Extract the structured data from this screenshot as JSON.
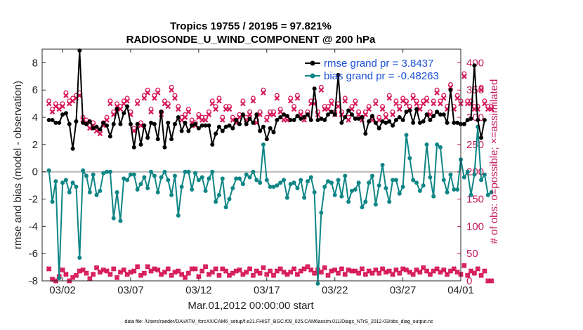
{
  "chart_data": {
    "type": "line",
    "title": "Tropics 19755 / 20195 = 97.821%",
    "subtitle": "RADIOSONDE_U_WIND_COMPONENT @ 200 hPa",
    "xlabel": "Mar.01,2012 00:00:00 start",
    "ylabel": "rmse and bias (model - observation)",
    "ylabel_right": "# of obs: o=possible; ×=assimilated",
    "footer": "data file: /Users/raeder/DAI/ATM_forcXX/CAM6_setup/f.e21.FHIST_BGC.f09_025.CAM6assim.011/Diags_NTrS_2012-03/obs_diag_output.nc",
    "xlim": [
      0.5,
      31.25
    ],
    "ylim": [
      -8,
      9
    ],
    "ylim_right": [
      0,
      425
    ],
    "x_ticks": [
      {
        "v": 2,
        "label": "03/02"
      },
      {
        "v": 7,
        "label": "03/07"
      },
      {
        "v": 12,
        "label": "03/12"
      },
      {
        "v": 17,
        "label": "03/17"
      },
      {
        "v": 22,
        "label": "03/22"
      },
      {
        "v": 27,
        "label": "03/27"
      },
      {
        "v": 32,
        "label": "04/01"
      }
    ],
    "y_ticks": [
      -8,
      -6,
      -4,
      -2,
      0,
      2,
      4,
      6,
      8
    ],
    "y_ticks_right": [
      0,
      50,
      100,
      150,
      200,
      250,
      300,
      350,
      400
    ],
    "x_start": 1.0,
    "x_step": 0.25,
    "colors": {
      "rmse": "#000000",
      "bias": "#0f8585",
      "obs": "#d6185a",
      "zero_line": "#b8b8b8",
      "legend_text": "#1a4fd6"
    },
    "legend": [
      {
        "name": "rmse",
        "label": "rmse grand pr = 3.8437",
        "color": "#000000"
      },
      {
        "name": "bias",
        "label": "bias grand pr = -0.48263",
        "color": "#0f8585"
      }
    ],
    "series": [
      {
        "name": "rmse",
        "axis": "left",
        "values": [
          3.8,
          3.8,
          3.6,
          3.6,
          4.2,
          4.3,
          3.5,
          1.7,
          3.7,
          8.9,
          3.6,
          3.5,
          3.7,
          3.2,
          3.3,
          3.1,
          3.6,
          3.4,
          2.6,
          3.5,
          4.6,
          3.5,
          4.3,
          4.8,
          3.5,
          1.8,
          3.5,
          2.0,
          3.4,
          2.5,
          3.6,
          3.5,
          2.4,
          4.4,
          1.8,
          3.6,
          2.4,
          3.5,
          4.0,
          3.0,
          3.6,
          3.0,
          3.4,
          3.5,
          3.2,
          3.4,
          3.4,
          3.4,
          2.0,
          2.8,
          3.3,
          3.0,
          3.3,
          3.4,
          3.2,
          3.8,
          3.5,
          4.2,
          3.5,
          3.9,
          3.6,
          4.2,
          3.0,
          3.3,
          2.4,
          3.2,
          2.9,
          3.8,
          4.0,
          4.2,
          4.1,
          3.8,
          3.8,
          4.1,
          3.9,
          4.0,
          4.2,
          3.8,
          6.1,
          3.8,
          3.9,
          3.8,
          4.2,
          4.4,
          4.2,
          7.1,
          3.6,
          4.0,
          4.5,
          4.2,
          3.9,
          3.9,
          4.0,
          2.8,
          3.7,
          4.1,
          3.6,
          3.2,
          3.7,
          3.6,
          3.7,
          3.4,
          3.8,
          4.0,
          3.8,
          4.4,
          4.5,
          3.6,
          4.6,
          3.6,
          3.7,
          4.2,
          3.8,
          4.1,
          4.4,
          4.2,
          4.2,
          3.6,
          6.0,
          3.6,
          3.6,
          3.5,
          3.5,
          3.8,
          3.9,
          7.8,
          3.8,
          2.5,
          3.8
        ]
      },
      {
        "name": "bias",
        "axis": "left",
        "values": [
          0.1,
          -2.2,
          -0.7,
          -7.8,
          -0.8,
          -0.6,
          -1.5,
          -0.8,
          -1.1,
          -6.3,
          0.1,
          -0.3,
          -1.5,
          -0.2,
          -1.7,
          -1.4,
          -0.1,
          0.0,
          0.0,
          -3.4,
          -1.5,
          -3.6,
          -0.5,
          -0.6,
          -0.2,
          -0.2,
          -1.3,
          -0.9,
          -0.4,
          -1.2,
          0.0,
          -0.3,
          -1.5,
          -0.4,
          0.0,
          -0.6,
          -1.7,
          -0.3,
          -3.2,
          -1.1,
          0.0,
          0.0,
          -1.3,
          -0.1,
          -0.6,
          -0.4,
          -1.4,
          -0.5,
          0.0,
          -2.2,
          -1.7,
          -0.5,
          -2.6,
          -2.0,
          -1.2,
          -0.5,
          -0.5,
          -0.9,
          -0.2,
          -0.4,
          0.0,
          -0.6,
          -0.8,
          2.0,
          -0.6,
          -1.1,
          -1.1,
          -1.0,
          -0.8,
          -0.6,
          -1.9,
          -0.9,
          -0.8,
          -1.2,
          -0.6,
          -1.9,
          -0.7,
          -0.4,
          -1.5,
          -8.2,
          -3.0,
          -1.1,
          -0.7,
          -0.8,
          -1.7,
          -0.6,
          -1.8,
          -0.3,
          -2.2,
          -1.4,
          -1.3,
          -0.8,
          -2.6,
          -2.2,
          -0.8,
          -0.3,
          -2.4,
          -1.0,
          0.5,
          -1.2,
          -2.2,
          -0.6,
          -0.6,
          -1.6,
          -1.1,
          2.7,
          1.0,
          -0.6,
          -0.8,
          -1.4,
          -1.0,
          2.0,
          -0.4,
          -1.8,
          2.0,
          1.8,
          -0.6,
          -1.5,
          -0.2,
          -1.3,
          -1.3,
          0.9,
          -0.4,
          0.0,
          -1.7,
          -0.2,
          3.3,
          -0.6,
          -0.2,
          -1.7,
          -1.5
        ]
      },
      {
        "name": "possible",
        "axis": "right",
        "marker": "circle",
        "values": [
          330,
          315,
          325,
          320,
          325,
          345,
          330,
          335,
          340,
          345,
          300,
          295,
          285,
          290,
          280,
          275,
          290,
          300,
          330,
          310,
          325,
          320,
          330,
          335,
          310,
          280,
          330,
          290,
          340,
          350,
          315,
          340,
          350,
          310,
          330,
          325,
          355,
          340,
          320,
          300,
          305,
          315,
          295,
          290,
          305,
          300,
          300,
          310,
          330,
          320,
          335,
          300,
          320,
          320,
          300,
          295,
          305,
          330,
          300,
          310,
          335,
          295,
          310,
          350,
          300,
          310,
          310,
          340,
          315,
          300,
          300,
          335,
          320,
          340,
          310,
          300,
          310,
          330,
          330,
          310,
          355,
          320,
          320,
          330,
          310,
          325,
          310,
          335,
          300,
          320,
          330,
          310,
          300,
          310,
          320,
          300,
          330,
          300,
          320,
          305,
          340,
          310,
          330,
          320,
          335,
          330,
          320,
          340,
          330,
          320,
          330,
          335,
          310,
          330,
          350,
          330,
          340,
          320,
          360,
          320,
          340,
          330,
          380,
          330,
          330,
          320,
          320,
          355,
          330,
          320,
          320
        ]
      },
      {
        "name": "assimilated",
        "axis": "right",
        "marker": "x",
        "values": [
          325,
          310,
          320,
          315,
          320,
          340,
          325,
          330,
          335,
          340,
          295,
          290,
          280,
          285,
          275,
          270,
          285,
          295,
          325,
          305,
          320,
          315,
          325,
          330,
          305,
          275,
          325,
          285,
          335,
          345,
          310,
          335,
          345,
          305,
          325,
          320,
          350,
          335,
          315,
          295,
          300,
          310,
          290,
          285,
          300,
          295,
          295,
          305,
          325,
          315,
          330,
          295,
          315,
          315,
          295,
          290,
          300,
          325,
          295,
          305,
          330,
          290,
          305,
          345,
          295,
          305,
          305,
          335,
          310,
          295,
          295,
          330,
          315,
          335,
          305,
          295,
          305,
          325,
          325,
          305,
          350,
          315,
          315,
          325,
          305,
          320,
          305,
          330,
          295,
          315,
          325,
          305,
          295,
          305,
          315,
          295,
          325,
          295,
          315,
          300,
          335,
          305,
          325,
          315,
          330,
          325,
          315,
          335,
          325,
          315,
          325,
          330,
          305,
          325,
          345,
          325,
          335,
          315,
          355,
          315,
          335,
          325,
          375,
          325,
          325,
          315,
          315,
          350,
          325,
          315,
          315
        ]
      },
      {
        "name": "possible_low",
        "axis": "right",
        "marker": "circle",
        "values": [
          22,
          3,
          0,
          8,
          20,
          12,
          0,
          6,
          10,
          18,
          20,
          14,
          4,
          12,
          24,
          16,
          20,
          18,
          12,
          22,
          6,
          16,
          20,
          12,
          16,
          18,
          26,
          10,
          14,
          26,
          18,
          22,
          20,
          12,
          16,
          22,
          10,
          16,
          18,
          12,
          6,
          14,
          22,
          22,
          8,
          18,
          26,
          12,
          16,
          22,
          10,
          22,
          18,
          10,
          14,
          18,
          20,
          12,
          16,
          22,
          10,
          18,
          14,
          24,
          12,
          18,
          10,
          18,
          22,
          16,
          12,
          16,
          22,
          12,
          18,
          22,
          26,
          20,
          14,
          20,
          16,
          24,
          10,
          18,
          20,
          14,
          22,
          12,
          20,
          18,
          18,
          14,
          22,
          12,
          18,
          14,
          20,
          14,
          22,
          16,
          18,
          12,
          20,
          14,
          22,
          20,
          16,
          12,
          20,
          16,
          24,
          18,
          12,
          18,
          22,
          16,
          20,
          12,
          18,
          22,
          16,
          12,
          28,
          10,
          18,
          14,
          22,
          10,
          18,
          0,
          0
        ]
      },
      {
        "name": "assimilated_low",
        "axis": "right",
        "marker": "x",
        "values": [
          22,
          3,
          0,
          8,
          20,
          12,
          0,
          6,
          10,
          18,
          20,
          14,
          4,
          12,
          24,
          16,
          20,
          18,
          12,
          22,
          6,
          16,
          20,
          12,
          16,
          18,
          26,
          10,
          14,
          26,
          18,
          22,
          20,
          12,
          16,
          22,
          10,
          16,
          18,
          12,
          6,
          14,
          22,
          22,
          8,
          18,
          26,
          12,
          16,
          22,
          10,
          22,
          18,
          10,
          14,
          18,
          20,
          12,
          16,
          22,
          10,
          18,
          14,
          24,
          12,
          18,
          10,
          18,
          22,
          16,
          12,
          16,
          22,
          12,
          18,
          22,
          26,
          20,
          14,
          20,
          16,
          24,
          10,
          18,
          20,
          14,
          22,
          12,
          20,
          18,
          18,
          14,
          22,
          12,
          18,
          14,
          20,
          14,
          22,
          16,
          18,
          12,
          20,
          14,
          22,
          20,
          16,
          12,
          20,
          16,
          24,
          18,
          12,
          18,
          22,
          16,
          20,
          12,
          18,
          22,
          16,
          12,
          28,
          10,
          18,
          14,
          22,
          10,
          18,
          0,
          0
        ]
      }
    ]
  }
}
